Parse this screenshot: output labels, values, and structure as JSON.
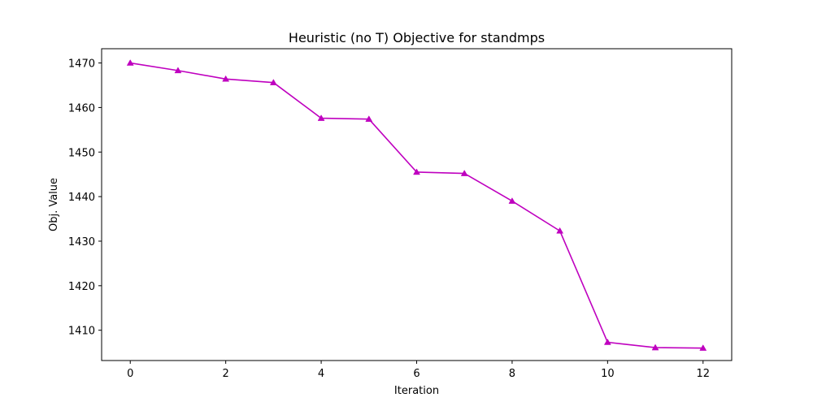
{
  "chart_data": {
    "type": "line",
    "title": "Heuristic (no T) Objective for standmps",
    "xlabel": "Iteration",
    "ylabel": "Obj. Value",
    "xlim": [
      -0.6,
      12.6
    ],
    "ylim": [
      1403.2,
      1473.2
    ],
    "xticks": [
      0,
      2,
      4,
      6,
      8,
      10,
      12
    ],
    "yticks": [
      1410,
      1420,
      1430,
      1440,
      1450,
      1460,
      1470
    ],
    "grid": false,
    "legend": "none",
    "marker": "triangle",
    "color": "#bf00bf",
    "series": [
      {
        "x": [
          0,
          1,
          2,
          3,
          4,
          5,
          6,
          7,
          8,
          9,
          10,
          11,
          12
        ],
        "values": [
          1470.0,
          1468.3,
          1466.4,
          1465.6,
          1457.6,
          1457.4,
          1445.5,
          1445.2,
          1439.0,
          1432.3,
          1407.3,
          1406.1,
          1406.0
        ]
      }
    ]
  }
}
